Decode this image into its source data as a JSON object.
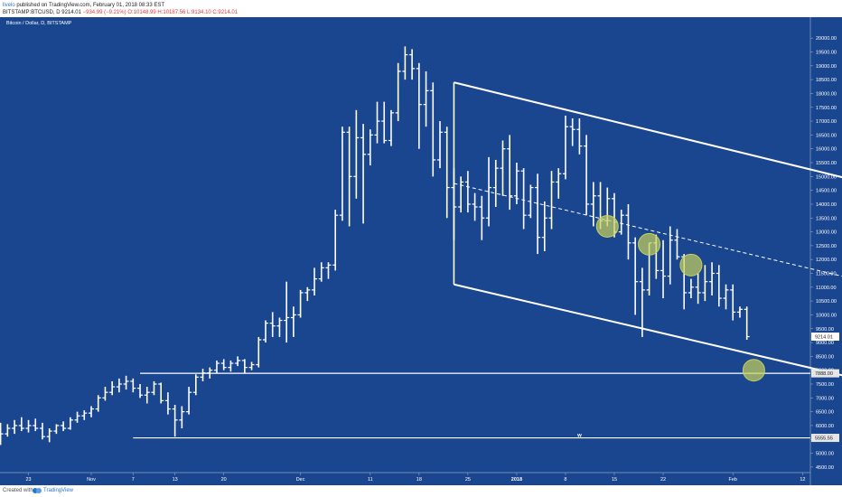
{
  "header": {
    "user": "livelo",
    "published": "published on TradingView.com, February 01, 2018 08:33 EST",
    "symbol": "BITSTAMP:BTCUSD, D",
    "last": "9214.01",
    "change": "−934.99 (−9.21%)",
    "ohlc": "O:10148.99 H:10187.56 L:9134.10 C:9214.01"
  },
  "legend_label": "Bitcoin / Dollar, D, BITSTAMP",
  "footer": {
    "created_with": "Created with",
    "brand": "TradingView"
  },
  "colors": {
    "background": "#1a468f",
    "bars": "#ffffff",
    "circles": "#c8d15a",
    "price_tag": "#e6e6e6"
  },
  "chart_data": {
    "type": "ohlc",
    "ylim": [
      4300,
      20300
    ],
    "y_ticks": [
      4500,
      5000,
      5500,
      6000,
      6500,
      7000,
      7500,
      8000,
      8500,
      9000,
      9500,
      10000,
      10500,
      11000,
      11500,
      12000,
      12500,
      13000,
      13500,
      14000,
      14500,
      15000,
      15500,
      16000,
      16500,
      17000,
      17500,
      18000,
      18500,
      19000,
      19500,
      20000
    ],
    "x_ticks": [
      {
        "label": "23",
        "day": -9
      },
      {
        "label": "Nov",
        "day": 0
      },
      {
        "label": "7",
        "day": 6
      },
      {
        "label": "13",
        "day": 12
      },
      {
        "label": "20",
        "day": 19
      },
      {
        "label": "Dec",
        "day": 30
      },
      {
        "label": "11",
        "day": 40
      },
      {
        "label": "18",
        "day": 47
      },
      {
        "label": "25",
        "day": 54
      },
      {
        "label": "2018",
        "day": 61
      },
      {
        "label": "8",
        "day": 68
      },
      {
        "label": "15",
        "day": 75
      },
      {
        "label": "22",
        "day": 82
      },
      {
        "label": "Feb",
        "day": 92
      },
      {
        "label": "12",
        "day": 102
      },
      {
        "label": "19",
        "day": 109
      }
    ],
    "bars": [
      [
        -13,
        5800,
        6100,
        5300,
        5700
      ],
      [
        -12,
        5700,
        6050,
        5600,
        5900
      ],
      [
        -11,
        5900,
        6200,
        5700,
        6000
      ],
      [
        -10,
        6000,
        6300,
        5800,
        5900
      ],
      [
        -9,
        5900,
        6200,
        5750,
        6000
      ],
      [
        -8,
        6000,
        6250,
        5800,
        5900
      ],
      [
        -7,
        5900,
        6100,
        5500,
        5600
      ],
      [
        -6,
        5600,
        5900,
        5400,
        5800
      ],
      [
        -5,
        5800,
        6050,
        5700,
        6000
      ],
      [
        -4,
        6000,
        6150,
        5800,
        5900
      ],
      [
        -3,
        5900,
        6300,
        5850,
        6200
      ],
      [
        -2,
        6200,
        6500,
        6100,
        6350
      ],
      [
        -1,
        6350,
        6550,
        6200,
        6450
      ],
      [
        0,
        6450,
        6700,
        6300,
        6600
      ],
      [
        1,
        6600,
        7100,
        6500,
        7000
      ],
      [
        2,
        7000,
        7400,
        6900,
        7200
      ],
      [
        3,
        7200,
        7600,
        7100,
        7400
      ],
      [
        4,
        7400,
        7700,
        7200,
        7500
      ],
      [
        5,
        7500,
        7800,
        7300,
        7600
      ],
      [
        6,
        7600,
        7700,
        7200,
        7350
      ],
      [
        7,
        7350,
        7500,
        7000,
        7100
      ],
      [
        8,
        7100,
        7400,
        6800,
        7200
      ],
      [
        9,
        7200,
        7600,
        7100,
        7500
      ],
      [
        10,
        7500,
        7550,
        6800,
        6900
      ],
      [
        11,
        6900,
        7200,
        6400,
        6600
      ],
      [
        12,
        6600,
        6750,
        5600,
        6200
      ],
      [
        13,
        6200,
        6700,
        5900,
        6500
      ],
      [
        14,
        6500,
        7400,
        6400,
        7200
      ],
      [
        15,
        7200,
        7850,
        7100,
        7750
      ],
      [
        16,
        7750,
        8050,
        7600,
        7900
      ],
      [
        17,
        7900,
        8100,
        7700,
        8000
      ],
      [
        18,
        8000,
        8350,
        7900,
        8250
      ],
      [
        19,
        8250,
        8400,
        8000,
        8100
      ],
      [
        20,
        8100,
        8350,
        7950,
        8250
      ],
      [
        21,
        8250,
        8500,
        8150,
        8350
      ],
      [
        22,
        8350,
        8400,
        7900,
        8100
      ],
      [
        23,
        8100,
        8300,
        8000,
        8200
      ],
      [
        24,
        8200,
        9200,
        8100,
        9100
      ],
      [
        25,
        9100,
        9800,
        9000,
        9700
      ],
      [
        26,
        9700,
        10100,
        9200,
        9600
      ],
      [
        27,
        9600,
        9900,
        9200,
        9800
      ],
      [
        28,
        9800,
        11200,
        9000,
        9900
      ],
      [
        29,
        9900,
        10300,
        9200,
        10000
      ],
      [
        30,
        10000,
        10900,
        9900,
        10800
      ],
      [
        31,
        10800,
        11000,
        10500,
        10900
      ],
      [
        32,
        10900,
        11700,
        10700,
        11300
      ],
      [
        33,
        11300,
        11900,
        11200,
        11700
      ],
      [
        34,
        11700,
        11900,
        11300,
        11800
      ],
      [
        35,
        11800,
        13800,
        11600,
        13600
      ],
      [
        36,
        13600,
        16800,
        13400,
        16600
      ],
      [
        37,
        16600,
        16800,
        13200,
        15000
      ],
      [
        38,
        15000,
        17400,
        14200,
        16400
      ],
      [
        39,
        16400,
        16900,
        13300,
        15800
      ],
      [
        40,
        15800,
        16700,
        15400,
        16500
      ],
      [
        41,
        16500,
        17700,
        16200,
        17000
      ],
      [
        42,
        17000,
        17700,
        16200,
        16300
      ],
      [
        43,
        16300,
        17400,
        16100,
        17300
      ],
      [
        44,
        17300,
        19100,
        17000,
        18800
      ],
      [
        45,
        18800,
        19700,
        18500,
        19400
      ],
      [
        46,
        19400,
        19600,
        18500,
        18900
      ],
      [
        47,
        18900,
        19100,
        16000,
        17600
      ],
      [
        48,
        17600,
        18800,
        16800,
        18100
      ],
      [
        49,
        18100,
        18400,
        15000,
        15600
      ],
      [
        50,
        15600,
        17000,
        15300,
        16600
      ],
      [
        51,
        16600,
        16800,
        13500,
        14600
      ],
      [
        52,
        14600,
        15300,
        12700,
        13900
      ],
      [
        53,
        13900,
        15000,
        13700,
        14800
      ],
      [
        54,
        14800,
        15200,
        13700,
        14000
      ],
      [
        55,
        14000,
        14400,
        13400,
        13900
      ],
      [
        56,
        13900,
        14300,
        12700,
        13500
      ],
      [
        57,
        13500,
        15700,
        13200,
        14600
      ],
      [
        58,
        14600,
        15600,
        13900,
        15300
      ],
      [
        59,
        15300,
        16300,
        14300,
        16000
      ],
      [
        60,
        16000,
        16500,
        13800,
        14300
      ],
      [
        61,
        14300,
        15500,
        14000,
        15200
      ],
      [
        62,
        15200,
        15300,
        13100,
        13600
      ],
      [
        63,
        13600,
        14700,
        13500,
        14600
      ],
      [
        64,
        14600,
        15100,
        12200,
        12800
      ],
      [
        65,
        12800,
        14100,
        12300,
        13500
      ],
      [
        66,
        13500,
        15200,
        13100,
        14800
      ],
      [
        67,
        14800,
        15300,
        14200,
        15100
      ],
      [
        68,
        15100,
        17200,
        14900,
        16800
      ],
      [
        69,
        16800,
        17100,
        16100,
        16700
      ],
      [
        70,
        16700,
        17100,
        15800,
        16100
      ],
      [
        71,
        16100,
        16500,
        13600,
        14000
      ],
      [
        72,
        14000,
        14800,
        13200,
        14300
      ],
      [
        73,
        14300,
        14800,
        13100,
        13400
      ],
      [
        74,
        13400,
        14600,
        13200,
        14200
      ],
      [
        75,
        14200,
        14400,
        12800,
        13000
      ],
      [
        76,
        13000,
        13800,
        12900,
        13600
      ],
      [
        77,
        13600,
        14000,
        12000,
        12600
      ],
      [
        78,
        12600,
        12800,
        10000,
        11200
      ],
      [
        79,
        11200,
        11700,
        9200,
        10900
      ],
      [
        80,
        10900,
        12600,
        10700,
        12600
      ],
      [
        81,
        12600,
        12900,
        11300,
        11600
      ],
      [
        82,
        11600,
        12700,
        10600,
        11400
      ],
      [
        83,
        11400,
        13200,
        11100,
        12700
      ],
      [
        84,
        12700,
        13100,
        12000,
        12100
      ],
      [
        85,
        12100,
        12200,
        10200,
        10800
      ],
      [
        86,
        10800,
        11300,
        10600,
        11000
      ],
      [
        87,
        11000,
        11500,
        10400,
        10800
      ],
      [
        88,
        10800,
        11800,
        10500,
        11200
      ],
      [
        89,
        11200,
        11900,
        10700,
        11500
      ],
      [
        90,
        11500,
        11800,
        10300,
        10600
      ],
      [
        91,
        10600,
        11100,
        10200,
        10900
      ],
      [
        92,
        10900,
        11100,
        9800,
        10100
      ],
      [
        93,
        10100,
        10300,
        9900,
        10200
      ],
      [
        94,
        10200,
        10300,
        9100,
        9214
      ]
    ],
    "annotations": {
      "upper_line": [
        [
          52,
          18400
        ],
        [
          130,
          13600
        ]
      ],
      "lower_line": [
        [
          52,
          11100
        ],
        [
          130,
          6500
        ]
      ],
      "start_vertical": [
        [
          52,
          11100
        ],
        [
          52,
          18400
        ]
      ],
      "mid_dashed": [
        [
          52,
          14750
        ],
        [
          130,
          10050
        ]
      ],
      "horizontal_levels": [
        {
          "y": 7888,
          "label": "7888.00",
          "from_day": 7
        },
        {
          "y": 5555.55,
          "label": "5555.55",
          "from_day": 6
        }
      ],
      "w_markers": [
        {
          "day": 70,
          "y": 5555.55
        }
      ],
      "circles": [
        [
          74,
          13200
        ],
        [
          80,
          12550
        ],
        [
          86,
          11800
        ],
        [
          95,
          8000
        ]
      ],
      "last_price_label": "9214.01"
    }
  }
}
